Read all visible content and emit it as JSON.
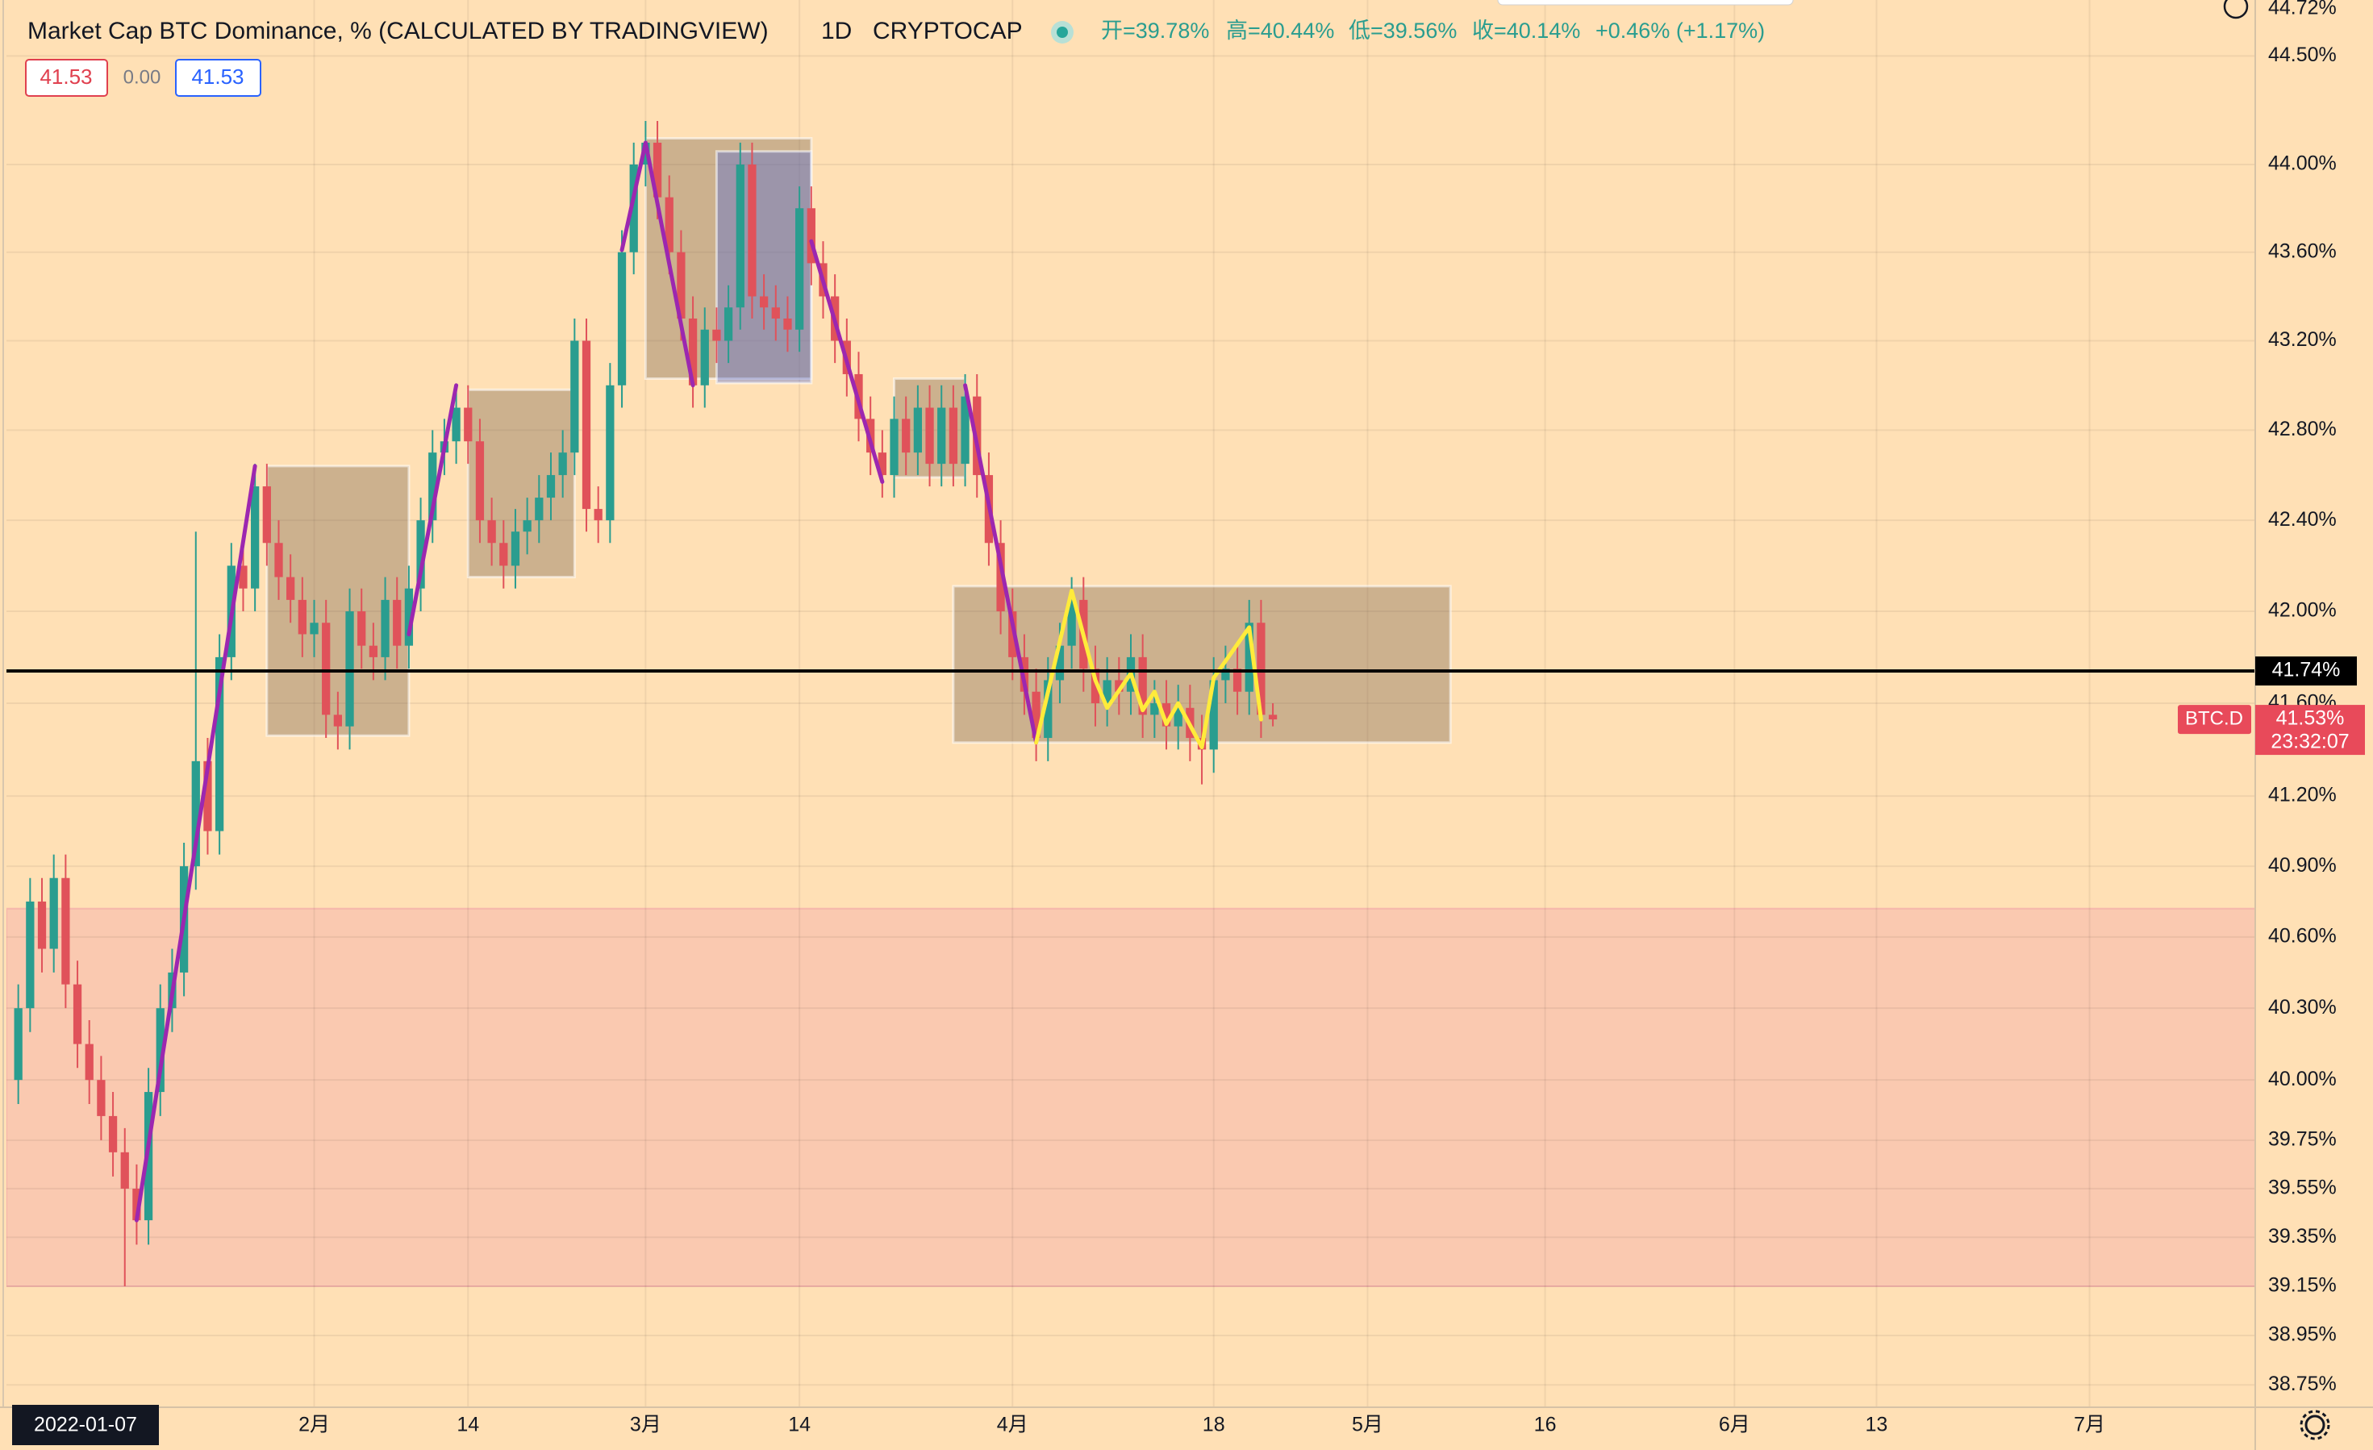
{
  "header": {
    "title": "Market Cap BTC Dominance, % (CALCULATED BY TRADINGVIEW)",
    "interval": "1D",
    "exchange": "CRYPTOCAP",
    "ohlc": [
      "开=39.78%",
      "高=40.44%",
      "低=39.56%",
      "收=40.14%",
      "+0.46% (+1.17%)"
    ],
    "indicator_values": [
      "41.53",
      "0.00",
      "41.53"
    ]
  },
  "chart_data": {
    "type": "candlestick",
    "log_scale": true,
    "grid": true,
    "up_color": "#2a9d8f",
    "down_color": "#e0525a",
    "categories": [
      "2022-01-07",
      "2022-01-08",
      "2022-01-09",
      "2022-01-10",
      "2022-01-11",
      "2022-01-12",
      "2022-01-13",
      "2022-01-14",
      "2022-01-15",
      "2022-01-16",
      "2022-01-17",
      "2022-01-18",
      "2022-01-19",
      "2022-01-20",
      "2022-01-21",
      "2022-01-22",
      "2022-01-23",
      "2022-01-24",
      "2022-01-25",
      "2022-01-26",
      "2022-01-27",
      "2022-01-28",
      "2022-01-29",
      "2022-01-30",
      "2022-01-31",
      "2022-02-01",
      "2022-02-02",
      "2022-02-03",
      "2022-02-04",
      "2022-02-05",
      "2022-02-06",
      "2022-02-07",
      "2022-02-08",
      "2022-02-09",
      "2022-02-10",
      "2022-02-11",
      "2022-02-12",
      "2022-02-13",
      "2022-02-14",
      "2022-02-15",
      "2022-02-16",
      "2022-02-17",
      "2022-02-18",
      "2022-02-19",
      "2022-02-20",
      "2022-02-21",
      "2022-02-22",
      "2022-02-23",
      "2022-02-24",
      "2022-02-25",
      "2022-02-26",
      "2022-02-27",
      "2022-02-28",
      "2022-03-01",
      "2022-03-02",
      "2022-03-03",
      "2022-03-04",
      "2022-03-05",
      "2022-03-06",
      "2022-03-07",
      "2022-03-08",
      "2022-03-09",
      "2022-03-10",
      "2022-03-11",
      "2022-03-12",
      "2022-03-13",
      "2022-03-14",
      "2022-03-15",
      "2022-03-16",
      "2022-03-17",
      "2022-03-18",
      "2022-03-19",
      "2022-03-20",
      "2022-03-21",
      "2022-03-22",
      "2022-03-23",
      "2022-03-24",
      "2022-03-25",
      "2022-03-26",
      "2022-03-27",
      "2022-03-28",
      "2022-03-29",
      "2022-03-30",
      "2022-03-31",
      "2022-04-01",
      "2022-04-02",
      "2022-04-03",
      "2022-04-04",
      "2022-04-05",
      "2022-04-06",
      "2022-04-07",
      "2022-04-08",
      "2022-04-09",
      "2022-04-10",
      "2022-04-11",
      "2022-04-12",
      "2022-04-13",
      "2022-04-14",
      "2022-04-15",
      "2022-04-16",
      "2022-04-17",
      "2022-04-18",
      "2022-04-19",
      "2022-04-20",
      "2022-04-21",
      "2022-04-22",
      "2022-04-23"
    ],
    "open": [
      40.0,
      40.3,
      40.75,
      40.55,
      40.85,
      40.4,
      40.15,
      40.0,
      39.85,
      39.7,
      39.55,
      39.42,
      39.95,
      40.3,
      40.45,
      40.9,
      41.35,
      41.05,
      41.8,
      42.2,
      42.1,
      42.55,
      42.3,
      42.15,
      42.05,
      41.9,
      41.95,
      41.55,
      41.5,
      42.0,
      41.85,
      41.8,
      42.05,
      41.85,
      42.1,
      42.4,
      42.7,
      42.75,
      42.9,
      42.75,
      42.4,
      42.3,
      42.2,
      42.35,
      42.4,
      42.5,
      42.6,
      42.7,
      43.2,
      42.45,
      42.4,
      43.0,
      43.6,
      44.0,
      44.1,
      43.85,
      43.6,
      43.3,
      43.0,
      43.25,
      43.2,
      43.35,
      44.0,
      43.4,
      43.35,
      43.3,
      43.25,
      43.8,
      43.55,
      43.4,
      43.2,
      43.05,
      42.85,
      42.7,
      42.6,
      42.85,
      42.7,
      42.9,
      42.65,
      42.9,
      42.65,
      42.95,
      42.6,
      42.3,
      42.0,
      41.8,
      41.65,
      41.45,
      41.7,
      41.85,
      42.05,
      41.75,
      41.6,
      41.7,
      41.65,
      41.8,
      41.55,
      41.6,
      41.5,
      41.58,
      41.45,
      41.4,
      41.7,
      41.75,
      41.65,
      41.95,
      41.55
    ],
    "high": [
      40.4,
      40.85,
      40.85,
      40.95,
      40.95,
      40.5,
      40.25,
      40.1,
      39.95,
      39.8,
      39.65,
      40.05,
      40.4,
      40.55,
      41.0,
      42.35,
      41.45,
      41.9,
      42.3,
      42.3,
      42.65,
      42.65,
      42.4,
      42.25,
      42.15,
      42.05,
      42.05,
      41.65,
      42.1,
      42.1,
      41.95,
      42.15,
      42.15,
      42.2,
      42.5,
      42.8,
      42.85,
      43.0,
      43.0,
      42.85,
      42.5,
      42.4,
      42.45,
      42.5,
      42.6,
      42.7,
      42.8,
      43.3,
      43.3,
      42.55,
      43.1,
      43.7,
      44.1,
      44.2,
      44.2,
      43.95,
      43.7,
      43.4,
      43.35,
      43.35,
      43.45,
      44.1,
      44.1,
      43.5,
      43.45,
      43.4,
      43.9,
      43.9,
      43.65,
      43.5,
      43.3,
      43.15,
      42.95,
      42.8,
      42.95,
      42.95,
      43.0,
      43.0,
      43.0,
      43.0,
      43.05,
      43.05,
      42.7,
      42.4,
      42.1,
      41.9,
      41.75,
      41.8,
      41.95,
      42.15,
      42.15,
      41.85,
      41.8,
      41.8,
      41.9,
      41.9,
      41.7,
      41.7,
      41.68,
      41.68,
      41.55,
      41.8,
      41.85,
      41.85,
      42.05,
      42.05,
      41.6
    ],
    "low": [
      39.9,
      40.2,
      40.45,
      40.45,
      40.3,
      40.05,
      39.9,
      39.75,
      39.6,
      39.15,
      39.32,
      39.32,
      39.85,
      40.2,
      40.35,
      40.8,
      40.95,
      40.95,
      41.7,
      42.0,
      42.0,
      42.2,
      42.05,
      41.95,
      41.8,
      41.8,
      41.45,
      41.4,
      41.4,
      41.75,
      41.7,
      41.7,
      41.75,
      41.75,
      42.0,
      42.3,
      42.6,
      42.65,
      42.65,
      42.3,
      42.2,
      42.1,
      42.1,
      42.25,
      42.3,
      42.4,
      42.5,
      42.6,
      42.35,
      42.3,
      42.3,
      42.9,
      43.5,
      43.9,
      43.75,
      43.5,
      43.2,
      42.9,
      42.9,
      43.1,
      43.1,
      43.25,
      43.3,
      43.25,
      43.2,
      43.15,
      43.15,
      43.45,
      43.3,
      43.1,
      42.95,
      42.75,
      42.6,
      42.5,
      42.5,
      42.6,
      42.6,
      42.55,
      42.55,
      42.55,
      42.55,
      42.5,
      42.2,
      41.9,
      41.7,
      41.55,
      41.35,
      41.35,
      41.6,
      41.75,
      41.65,
      41.5,
      41.5,
      41.55,
      41.55,
      41.45,
      41.45,
      41.4,
      41.4,
      41.35,
      41.25,
      41.3,
      41.6,
      41.55,
      41.55,
      41.45,
      41.5
    ],
    "close": [
      40.3,
      40.75,
      40.55,
      40.85,
      40.4,
      40.15,
      40.0,
      39.85,
      39.7,
      39.55,
      39.42,
      39.95,
      40.3,
      40.45,
      40.9,
      41.35,
      41.05,
      41.8,
      42.2,
      42.1,
      42.55,
      42.3,
      42.15,
      42.05,
      41.9,
      41.95,
      41.55,
      41.5,
      42.0,
      41.85,
      41.8,
      42.05,
      41.85,
      42.1,
      42.4,
      42.7,
      42.75,
      42.9,
      42.75,
      42.4,
      42.3,
      42.2,
      42.35,
      42.4,
      42.5,
      42.6,
      42.7,
      43.2,
      42.45,
      42.4,
      43.0,
      43.6,
      44.0,
      44.1,
      43.85,
      43.6,
      43.3,
      43.0,
      43.25,
      43.2,
      43.35,
      44.0,
      43.4,
      43.35,
      43.3,
      43.25,
      43.8,
      43.55,
      43.4,
      43.2,
      43.05,
      42.85,
      42.7,
      42.6,
      42.85,
      42.7,
      42.9,
      42.65,
      42.9,
      42.65,
      42.95,
      42.6,
      42.3,
      42.0,
      41.8,
      41.65,
      41.45,
      41.7,
      41.85,
      42.05,
      41.75,
      41.6,
      41.7,
      41.65,
      41.8,
      41.55,
      41.6,
      41.5,
      41.58,
      41.45,
      41.4,
      41.7,
      41.75,
      41.65,
      41.95,
      41.55,
      41.53
    ],
    "xlim": [
      "2022-01-06",
      "2022-07-15"
    ],
    "xticks": [
      {
        "value": "2022-02-01",
        "label": "2月"
      },
      {
        "value": "2022-02-14",
        "label": "14"
      },
      {
        "value": "2022-03-01",
        "label": "3月"
      },
      {
        "value": "2022-03-14",
        "label": "14"
      },
      {
        "value": "2022-04-01",
        "label": "4月"
      },
      {
        "value": "2022-04-18",
        "label": "18"
      },
      {
        "value": "2022-05-01",
        "label": "5月"
      },
      {
        "value": "2022-05-16",
        "label": "16"
      },
      {
        "value": "2022-06-01",
        "label": "6月"
      },
      {
        "value": "2022-06-13",
        "label": "13"
      },
      {
        "value": "2022-07-01",
        "label": "7月"
      }
    ],
    "ylim": [
      38.66,
      44.76
    ],
    "yticks": [
      {
        "value": 38.75,
        "label": "38.75%"
      },
      {
        "value": 38.95,
        "label": "38.95%"
      },
      {
        "value": 39.15,
        "label": "39.15%"
      },
      {
        "value": 39.35,
        "label": "39.35%"
      },
      {
        "value": 39.55,
        "label": "39.55%"
      },
      {
        "value": 39.75,
        "label": "39.75%"
      },
      {
        "value": 40.0,
        "label": "40.00%"
      },
      {
        "value": 40.3,
        "label": "40.30%"
      },
      {
        "value": 40.6,
        "label": "40.60%"
      },
      {
        "value": 40.9,
        "label": "40.90%"
      },
      {
        "value": 41.2,
        "label": "41.20%"
      },
      {
        "value": 41.6,
        "label": "41.60%"
      },
      {
        "value": 42.0,
        "label": "42.00%"
      },
      {
        "value": 42.4,
        "label": "42.40%"
      },
      {
        "value": 42.8,
        "label": "42.80%"
      },
      {
        "value": 43.2,
        "label": "43.20%"
      },
      {
        "value": 43.6,
        "label": "43.60%"
      },
      {
        "value": 44.0,
        "label": "44.00%"
      },
      {
        "value": 44.5,
        "label": "44.50%"
      }
    ],
    "bands": [
      {
        "y0": 39.15,
        "y1": 40.72,
        "color": "#f2a3a8"
      }
    ],
    "zones": [
      {
        "x0": "2022-01-28",
        "x1": "2022-02-09",
        "y0": 41.46,
        "y1": 42.64,
        "color": "#7a6450"
      },
      {
        "x0": "2022-02-14",
        "x1": "2022-02-23",
        "y0": 42.15,
        "y1": 42.98,
        "color": "#7a6450"
      },
      {
        "x0": "2022-03-01",
        "x1": "2022-03-15",
        "y0": 43.03,
        "y1": 44.12,
        "color": "#7a6450"
      },
      {
        "x0": "2022-03-07",
        "x1": "2022-03-15",
        "y0": 43.01,
        "y1": 44.06,
        "color": "#4f6ad8"
      },
      {
        "x0": "2022-03-22",
        "x1": "2022-03-28",
        "y0": 42.59,
        "y1": 43.03,
        "color": "#7a6450"
      },
      {
        "x0": "2022-03-27",
        "x1": "2022-05-08",
        "y0": 41.43,
        "y1": 42.11,
        "color": "#7a6450"
      }
    ],
    "trend_lines": [
      {
        "color": "#9c27b0",
        "x": [
          "2022-01-17",
          "2022-01-27"
        ],
        "values": [
          39.42,
          42.64
        ]
      },
      {
        "color": "#9c27b0",
        "x": [
          "2022-02-09",
          "2022-02-13"
        ],
        "values": [
          41.9,
          43.0
        ]
      },
      {
        "color": "#9c27b0",
        "x": [
          "2022-02-27",
          "2022-03-01",
          "2022-03-05"
        ],
        "values": [
          43.61,
          44.1,
          43.0
        ]
      },
      {
        "color": "#9c27b0",
        "x": [
          "2022-03-15",
          "2022-03-21"
        ],
        "values": [
          43.65,
          42.57
        ]
      },
      {
        "color": "#9c27b0",
        "x": [
          "2022-03-28",
          "2022-04-03"
        ],
        "values": [
          43.0,
          41.43
        ]
      },
      {
        "color": "#ffeb3b",
        "x": [
          "2022-04-03",
          "2022-04-06",
          "2022-04-08",
          "2022-04-09",
          "2022-04-11",
          "2022-04-12",
          "2022-04-13",
          "2022-04-14",
          "2022-04-15",
          "2022-04-17",
          "2022-04-18",
          "2022-04-21",
          "2022-04-22"
        ],
        "values": [
          41.43,
          42.09,
          41.7,
          41.58,
          41.73,
          41.57,
          41.65,
          41.51,
          41.6,
          41.41,
          41.71,
          41.93,
          41.53
        ]
      }
    ],
    "price_line": {
      "value": 41.74,
      "label": "41.74%",
      "color": "#000000"
    },
    "last_price": {
      "symbol": "BTC.D",
      "value": 41.53,
      "label": "41.53%",
      "countdown": "23:32:07",
      "color": "#e84a5a"
    },
    "crosshair_price": {
      "value": 44.72,
      "label": "44.72%"
    }
  }
}
